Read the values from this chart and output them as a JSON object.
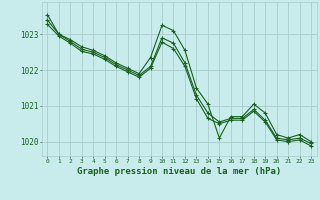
{
  "background_color": "#c8ecec",
  "grid_color": "#a8cccc",
  "line_color": "#1a6020",
  "linewidth": 0.8,
  "markersize": 3.5,
  "xlabel": "Graphe pression niveau de la mer (hPa)",
  "xlabel_fontsize": 6.5,
  "xlabel_fontweight": "bold",
  "xtick_fontsize": 4.5,
  "ytick_fontsize": 5.5,
  "xticks": [
    0,
    1,
    2,
    3,
    4,
    5,
    6,
    7,
    8,
    9,
    10,
    11,
    12,
    13,
    14,
    15,
    16,
    17,
    18,
    19,
    20,
    21,
    22,
    23
  ],
  "yticks": [
    1020,
    1021,
    1022,
    1023
  ],
  "ylim": [
    1019.6,
    1023.9
  ],
  "xlim": [
    -0.5,
    23.5
  ],
  "line1_y": [
    1023.55,
    1023.0,
    1022.85,
    1022.65,
    1022.55,
    1022.4,
    1022.2,
    1022.05,
    1021.9,
    1022.35,
    1023.25,
    1023.1,
    1022.55,
    1021.5,
    1021.05,
    1020.1,
    1020.7,
    1020.7,
    1021.05,
    1020.8,
    1020.2,
    1020.1,
    1020.2,
    1020.0
  ],
  "line2_y": [
    1023.4,
    1023.0,
    1022.8,
    1022.58,
    1022.5,
    1022.35,
    1022.15,
    1022.0,
    1021.85,
    1022.1,
    1022.9,
    1022.75,
    1022.2,
    1021.3,
    1020.8,
    1020.55,
    1020.65,
    1020.65,
    1020.9,
    1020.6,
    1020.1,
    1020.05,
    1020.1,
    1019.95
  ],
  "line3_y": [
    1023.28,
    1022.95,
    1022.75,
    1022.52,
    1022.45,
    1022.3,
    1022.1,
    1021.95,
    1021.8,
    1022.05,
    1022.78,
    1022.6,
    1022.1,
    1021.2,
    1020.65,
    1020.5,
    1020.6,
    1020.6,
    1020.85,
    1020.55,
    1020.05,
    1020.0,
    1020.05,
    1019.88
  ]
}
